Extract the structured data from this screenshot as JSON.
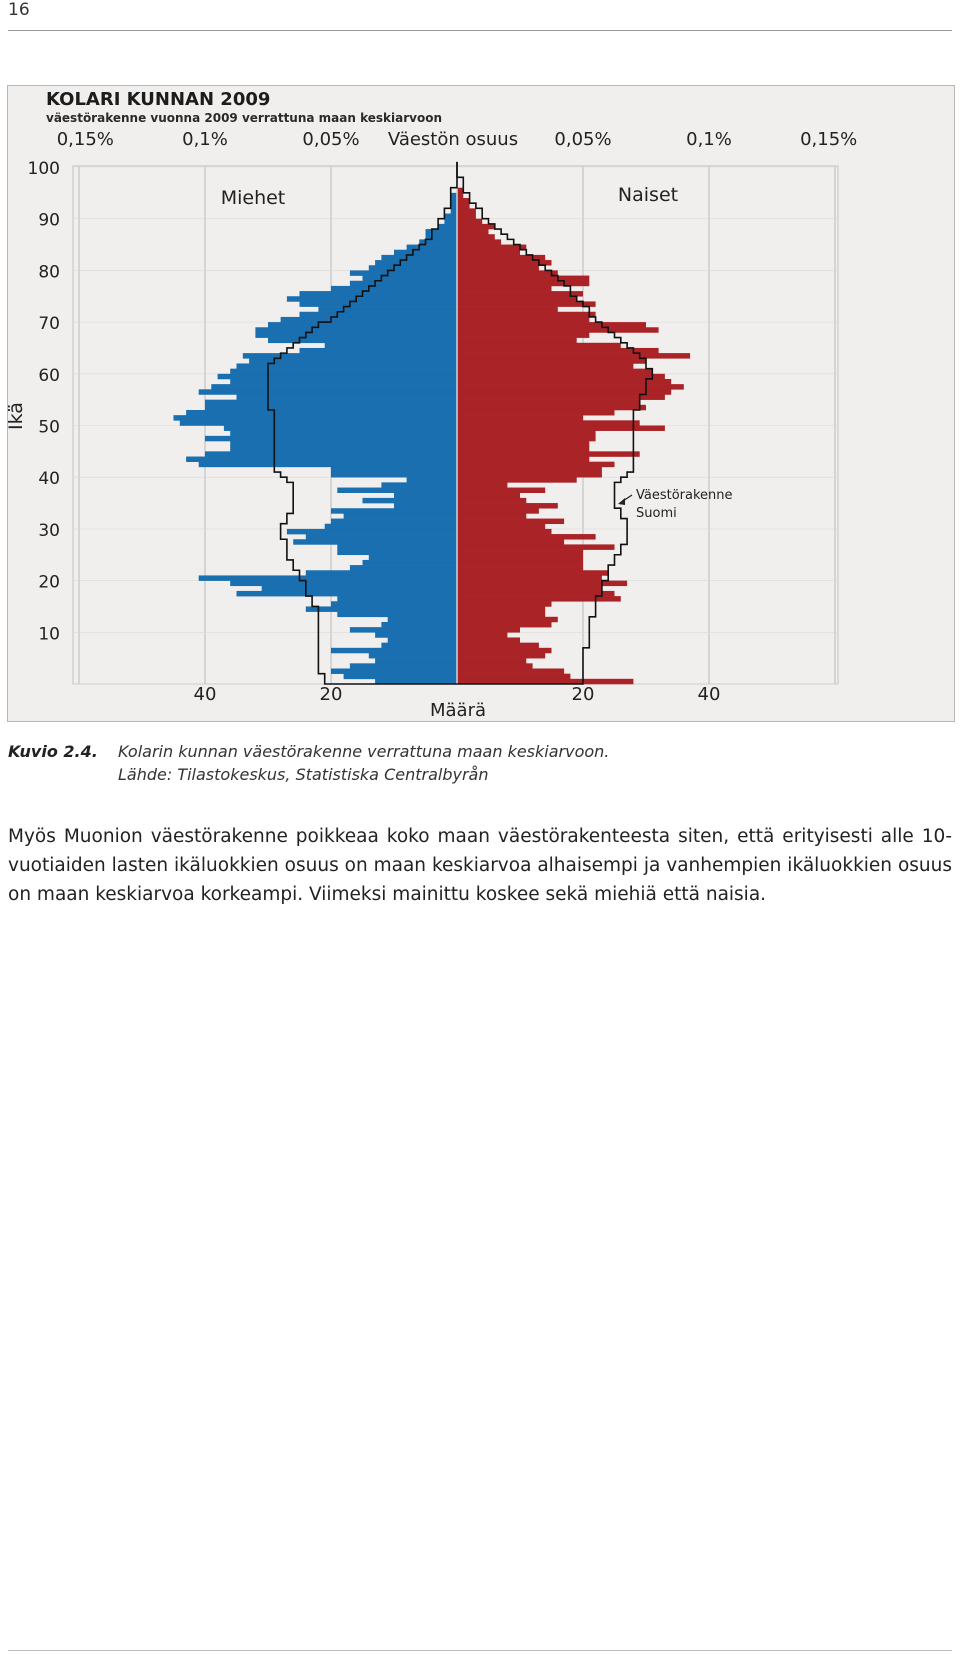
{
  "page": {
    "number": "16"
  },
  "caption": {
    "label": "Kuvio 2.4.",
    "text": "Kolarin kunnan väestörakenne verrattuna maan keskiarvoon.",
    "source": "Lähde: Tilastokeskus, Statistiska Centralbyrån"
  },
  "body": {
    "paragraph": "Myös Muonion väestörakenne poikkeaa koko maan väestörakenteesta siten, että erityisesti alle 10-vuotiaiden lasten ikäluokkien osuus on maan keskiarvoa alhaisempi ja vanhempien ikäluokkien osuus on maan keskiarvoa korkeampi. Viimeksi mainittu koskee sekä miehiä että naisia."
  },
  "colors": {
    "men": "#1a6fb0",
    "women": "#aa2327",
    "outline": "#111111",
    "grid": "#c3c3c3",
    "background": "#f1efed"
  },
  "chart_data": {
    "type": "population-pyramid",
    "title": "KOLARI KUNNAN 2009",
    "subtitle": "väestörakenne vuonna 2009 verrattuna maan keskiarvoon",
    "top_axis_label": "Väestön osuus",
    "top_ticks_left": [
      "0,15%",
      "0,1%",
      "0,05%"
    ],
    "top_ticks_right": [
      "0,05%",
      "0,1%",
      "0,15%"
    ],
    "bottom_axis_label": "Määrä",
    "bottom_ticks_left": [
      "40",
      "20"
    ],
    "bottom_ticks_right": [
      "20",
      "40"
    ],
    "ylabel": "Ikä",
    "y_ticks": [
      "100",
      "90",
      "80",
      "70",
      "60",
      "50",
      "40",
      "30",
      "20",
      "10"
    ],
    "ylim": [
      0,
      100
    ],
    "xlim": [
      -50,
      50
    ],
    "left_label": "Miehet",
    "right_label": "Naiset",
    "annotation": [
      "Väestörakenne",
      "Suomi"
    ],
    "ages": [
      0,
      1,
      2,
      3,
      4,
      5,
      6,
      7,
      8,
      9,
      10,
      11,
      12,
      13,
      14,
      15,
      16,
      17,
      18,
      19,
      20,
      21,
      22,
      23,
      24,
      25,
      26,
      27,
      28,
      29,
      30,
      31,
      32,
      33,
      34,
      35,
      36,
      37,
      38,
      39,
      40,
      41,
      42,
      43,
      44,
      45,
      46,
      47,
      48,
      49,
      50,
      51,
      52,
      53,
      54,
      55,
      56,
      57,
      58,
      59,
      60,
      61,
      62,
      63,
      64,
      65,
      66,
      67,
      68,
      69,
      70,
      71,
      72,
      73,
      74,
      75,
      76,
      77,
      78,
      79,
      80,
      81,
      82,
      83,
      84,
      85,
      86,
      87,
      88,
      89,
      90,
      91,
      92,
      93,
      94,
      95,
      96,
      97,
      98,
      99,
      100
    ],
    "series": [
      {
        "name": "Miehet",
        "values": [
          13,
          18,
          20,
          17,
          13,
          14,
          20,
          12,
          11,
          13,
          17,
          12,
          11,
          19,
          24,
          20,
          19,
          35,
          31,
          36,
          41,
          24,
          17,
          15,
          14,
          19,
          19,
          26,
          24,
          27,
          21,
          20,
          18,
          20,
          10,
          15,
          10,
          19,
          12,
          8,
          20,
          20,
          41,
          43,
          40,
          36,
          36,
          40,
          36,
          37,
          44,
          45,
          43,
          40,
          40,
          35,
          41,
          39,
          36,
          38,
          36,
          35,
          33,
          34,
          25,
          21,
          30,
          32,
          32,
          30,
          28,
          25,
          22,
          25,
          27,
          25,
          20,
          17,
          15,
          17,
          14,
          13,
          12,
          10,
          8,
          6,
          5,
          5,
          3,
          2,
          2,
          1,
          1,
          1,
          1,
          0,
          0,
          0,
          0,
          0,
          0
        ]
      },
      {
        "name": "Naiset",
        "values": [
          28,
          18,
          17,
          12,
          11,
          14,
          15,
          13,
          10,
          8,
          10,
          15,
          16,
          14,
          14,
          15,
          26,
          25,
          23,
          27,
          23,
          24,
          20,
          20,
          20,
          20,
          25,
          17,
          22,
          15,
          14,
          17,
          11,
          13,
          16,
          11,
          10,
          14,
          8,
          19,
          23,
          23,
          25,
          21,
          29,
          21,
          21,
          22,
          22,
          33,
          29,
          20,
          25,
          30,
          29,
          33,
          34,
          36,
          34,
          33,
          31,
          28,
          30,
          37,
          32,
          26,
          19,
          21,
          32,
          30,
          21,
          22,
          16,
          22,
          19,
          20,
          15,
          21,
          21,
          16,
          13,
          15,
          14,
          10,
          11,
          7,
          6,
          5,
          6,
          4,
          3,
          3,
          2,
          2,
          1,
          1,
          0,
          0,
          0,
          0,
          0
        ]
      },
      {
        "name": "Väestörakenne Suomi",
        "values_men": [
          21,
          21,
          22,
          22,
          22,
          22,
          22,
          22,
          22,
          22,
          22,
          22,
          22,
          22,
          22,
          23,
          23,
          24,
          24,
          24,
          25,
          25,
          26,
          26,
          27,
          27,
          27,
          27,
          28,
          28,
          28,
          27,
          27,
          26,
          26,
          26,
          26,
          26,
          26,
          27,
          28,
          29,
          29,
          29,
          29,
          29,
          29,
          29,
          29,
          29,
          29,
          29,
          29,
          30,
          30,
          30,
          30,
          30,
          30,
          30,
          30,
          30,
          29,
          28,
          27,
          26,
          25,
          24,
          23,
          22,
          20,
          19,
          18,
          17,
          16,
          15,
          14,
          13,
          12,
          11,
          10,
          9,
          8,
          7,
          6,
          5,
          4,
          4,
          3,
          3,
          2,
          2,
          1,
          1,
          1,
          1,
          0,
          0,
          0,
          0,
          0
        ],
        "values_women": [
          20,
          20,
          20,
          20,
          20,
          20,
          20,
          21,
          21,
          21,
          21,
          21,
          21,
          22,
          22,
          22,
          22,
          23,
          23,
          23,
          24,
          24,
          24,
          25,
          25,
          26,
          26,
          27,
          27,
          27,
          27,
          27,
          26,
          26,
          25,
          25,
          25,
          25,
          25,
          26,
          27,
          28,
          28,
          28,
          28,
          28,
          28,
          28,
          28,
          28,
          28,
          28,
          28,
          29,
          29,
          29,
          30,
          30,
          30,
          31,
          31,
          30,
          30,
          29,
          28,
          27,
          26,
          25,
          24,
          23,
          22,
          21,
          21,
          20,
          19,
          18,
          18,
          17,
          16,
          15,
          14,
          13,
          12,
          11,
          10,
          9,
          8,
          7,
          6,
          5,
          4,
          4,
          3,
          2,
          2,
          1,
          1,
          1,
          0,
          0,
          0
        ]
      }
    ],
    "grid": true
  }
}
